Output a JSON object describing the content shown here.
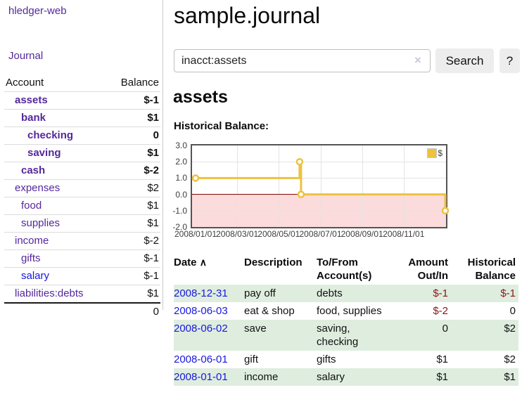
{
  "app": {
    "title": "hledger-web"
  },
  "sidebar": {
    "journal_label": "Journal",
    "accounts_table": {
      "account_header": "Account",
      "balance_header": "Balance",
      "rows": [
        {
          "label": "assets",
          "depth": 1,
          "bold": true,
          "balance": "$-1"
        },
        {
          "label": "bank",
          "depth": 2,
          "bold": true,
          "balance": "$1"
        },
        {
          "label": "checking",
          "depth": 3,
          "bold": true,
          "balance": "0"
        },
        {
          "label": "saving",
          "depth": 3,
          "bold": true,
          "balance": "$1"
        },
        {
          "label": "cash",
          "depth": 2,
          "bold": true,
          "balance": "$-2"
        },
        {
          "label": "expenses",
          "depth": 1,
          "bold": false,
          "balance": "$2"
        },
        {
          "label": "food",
          "depth": 2,
          "bold": false,
          "balance": "$1"
        },
        {
          "label": "supplies",
          "depth": 2,
          "bold": false,
          "balance": "$1"
        },
        {
          "label": "income",
          "depth": 1,
          "bold": false,
          "balance": "$-2"
        },
        {
          "label": "gifts",
          "depth": 2,
          "bold": false,
          "balance": "$-1"
        },
        {
          "label": "salary",
          "depth": 2,
          "bold": false,
          "balance": "$-1",
          "blue": true
        },
        {
          "label": "liabilities:debts",
          "depth": 1,
          "bold": false,
          "balance": "$1"
        }
      ],
      "total": "0"
    }
  },
  "main": {
    "page_title": "sample.journal",
    "search": {
      "value": "inacct:assets",
      "clear_icon": "×",
      "button_label": "Search",
      "help_label": "?"
    },
    "account_heading": "assets",
    "chart_label": "Historical Balance:",
    "register": {
      "headers": {
        "date": "Date",
        "sort_icon": "∧",
        "description": "Description",
        "account": "To/From Account(s)",
        "amount": "Amount Out/In",
        "balance": "Historical Balance"
      },
      "rows": [
        {
          "date": "2008-12-31",
          "description": "pay off",
          "accounts": "debts",
          "amount": "$-1",
          "balance": "$-1"
        },
        {
          "date": "2008-06-03",
          "description": "eat & shop",
          "accounts": "food, supplies",
          "amount": "$-2",
          "balance": "0"
        },
        {
          "date": "2008-06-02",
          "description": "save",
          "accounts": "saving, checking",
          "amount": "0",
          "balance": "$2"
        },
        {
          "date": "2008-06-01",
          "description": "gift",
          "accounts": "gifts",
          "amount": "$1",
          "balance": "$2"
        },
        {
          "date": "2008-01-01",
          "description": "income",
          "accounts": "salary",
          "amount": "$1",
          "balance": "$1"
        }
      ]
    }
  },
  "chart_data": {
    "type": "line",
    "title": "Historical Balance:",
    "step": true,
    "series": [
      {
        "name": "$",
        "color": "#EDC240",
        "points": [
          [
            "2008-01-01",
            1.0
          ],
          [
            "2008-06-01",
            2.0
          ],
          [
            "2008-06-03",
            0.0
          ],
          [
            "2008-12-31",
            -1.0
          ]
        ]
      }
    ],
    "ylim": [
      -2.0,
      3.0
    ],
    "yticks": [
      3.0,
      2.0,
      1.0,
      0.0,
      -1.0,
      -2.0
    ],
    "xticks": [
      "2008/01/01",
      "2008/03/01",
      "2008/05/01",
      "2008/07/01",
      "2008/09/01",
      "2008/11/01"
    ],
    "x_start": "2008-01-01",
    "x_end": "2009-01-01",
    "legend": {
      "label": "$",
      "position": "top-right"
    },
    "grid": true,
    "negative_region_color": "#FBDBDB",
    "zero_line_color": "#8B0000"
  },
  "colors": {
    "purple_link": "#54289B",
    "blue_link": "#1717DF",
    "negative_strong": "#8B1717",
    "negative_muted": "#BF8080",
    "row_green": "#DFEDDF",
    "chart_line": "#EDC240"
  }
}
